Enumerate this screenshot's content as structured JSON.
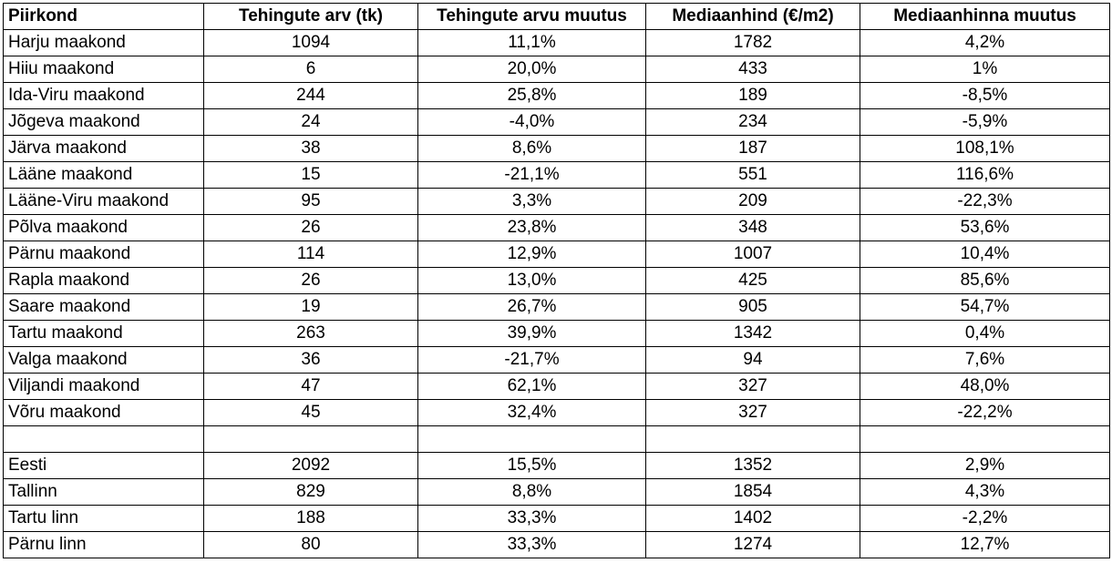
{
  "table": {
    "headers": [
      "Piirkond",
      "Tehingute arv (tk)",
      "Tehingute arvu muutus",
      "Mediaanhind (€/m2)",
      "Mediaanhinna muutus"
    ],
    "rows": [
      [
        "Harju maakond",
        "1094",
        "11,1%",
        "1782",
        "4,2%"
      ],
      [
        "Hiiu maakond",
        "6",
        "20,0%",
        "433",
        "1%"
      ],
      [
        "Ida-Viru maakond",
        "244",
        "25,8%",
        "189",
        "-8,5%"
      ],
      [
        "Jõgeva maakond",
        "24",
        "-4,0%",
        "234",
        "-5,9%"
      ],
      [
        "Järva maakond",
        "38",
        "8,6%",
        "187",
        "108,1%"
      ],
      [
        "Lääne maakond",
        "15",
        "-21,1%",
        "551",
        "116,6%"
      ],
      [
        "Lääne-Viru maakond",
        "95",
        "3,3%",
        "209",
        "-22,3%"
      ],
      [
        "Põlva maakond",
        "26",
        "23,8%",
        "348",
        "53,6%"
      ],
      [
        "Pärnu maakond",
        "114",
        "12,9%",
        "1007",
        "10,4%"
      ],
      [
        "Rapla maakond",
        "26",
        "13,0%",
        "425",
        "85,6%"
      ],
      [
        "Saare maakond",
        "19",
        "26,7%",
        "905",
        "54,7%"
      ],
      [
        "Tartu maakond",
        "263",
        "39,9%",
        "1342",
        "0,4%"
      ],
      [
        "Valga maakond",
        "36",
        "-21,7%",
        "94",
        "7,6%"
      ],
      [
        "Viljandi maakond",
        "47",
        "62,1%",
        "327",
        "48,0%"
      ],
      [
        "Võru maakond",
        "45",
        "32,4%",
        "327",
        "-22,2%"
      ],
      [
        "",
        "",
        "",
        "",
        ""
      ],
      [
        "Eesti",
        "2092",
        "15,5%",
        "1352",
        "2,9%"
      ],
      [
        "Tallinn",
        "829",
        "8,8%",
        "1854",
        "4,3%"
      ],
      [
        "Tartu linn",
        "188",
        "33,3%",
        "1402",
        "-2,2%"
      ],
      [
        "Pärnu linn",
        "80",
        "33,3%",
        "1274",
        "12,7%"
      ]
    ]
  }
}
